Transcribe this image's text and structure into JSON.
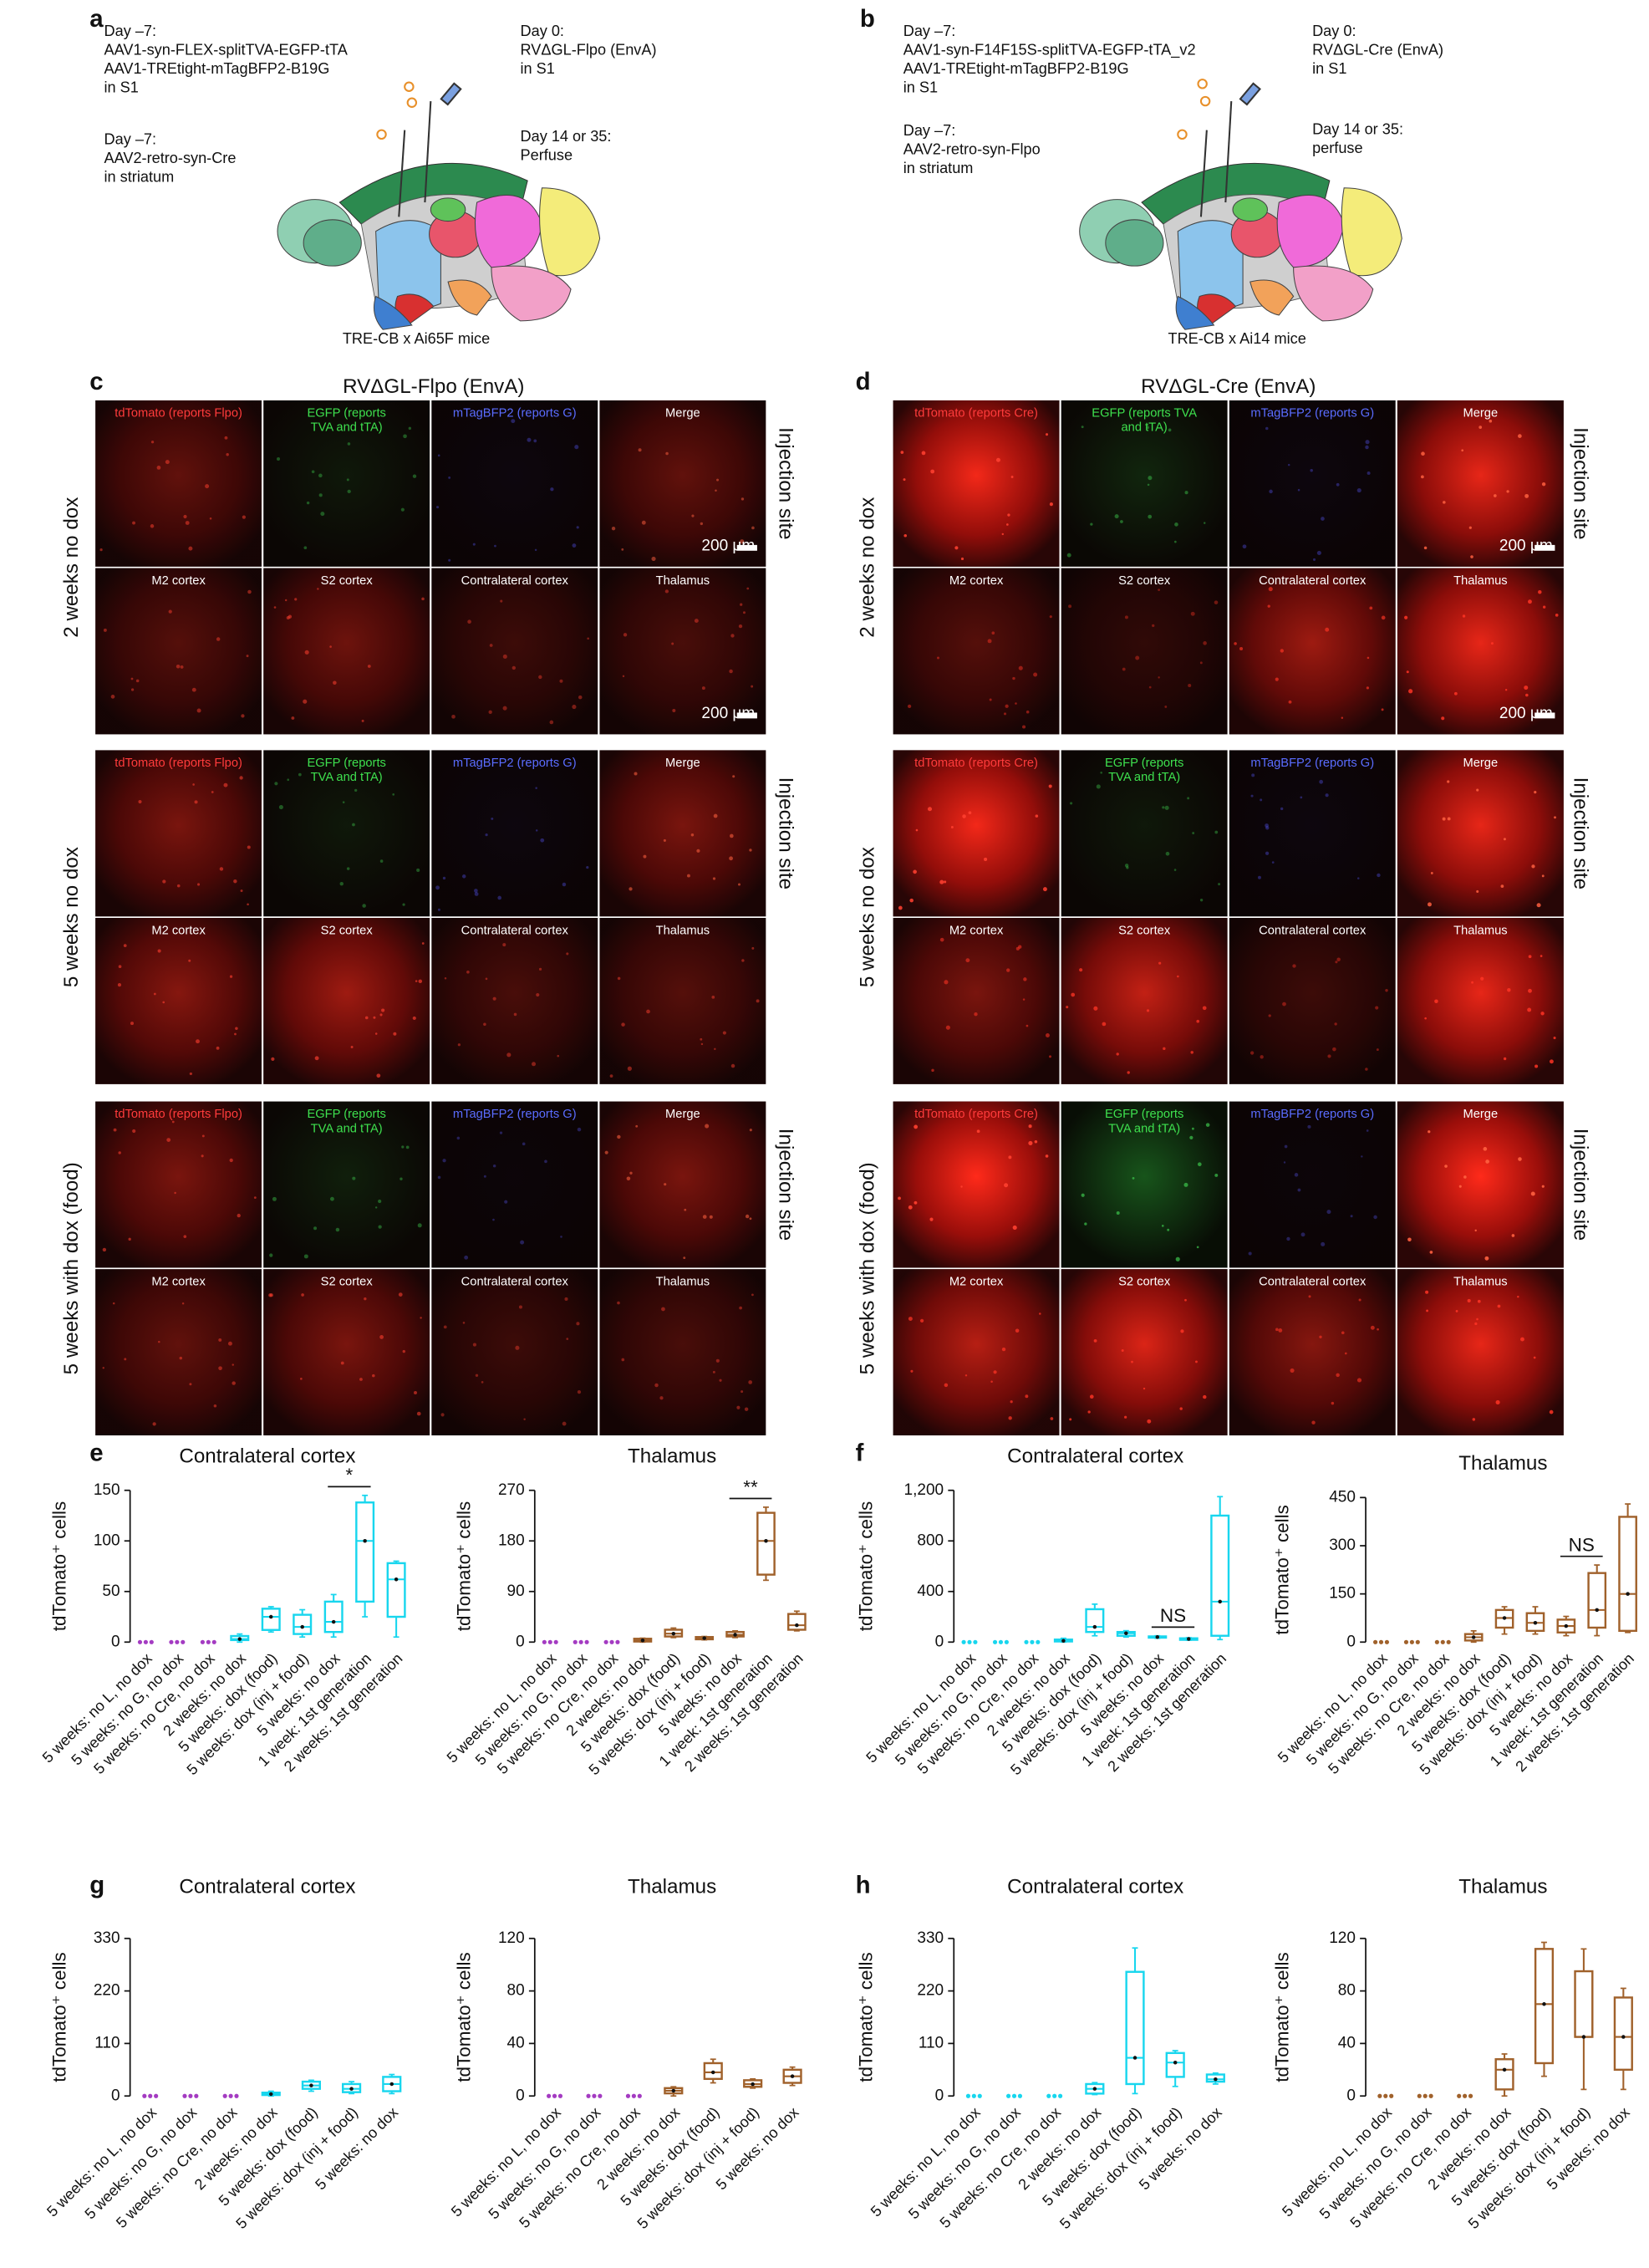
{
  "panel_a": {
    "label": "a",
    "blocks": [
      [
        "Day –7:",
        "AAV1-syn-FLEX-splitTVA-EGFP-tTA",
        "AAV1-TREtight-mTagBFP2-B19G",
        "in S1"
      ],
      [
        "Day –7:",
        "AAV2-retro-syn-Cre",
        "in striatum"
      ],
      [
        "Day 0:",
        "RVΔGL-Flpo (EnvA)",
        "in S1"
      ],
      [
        "Day 14 or 35:",
        "Perfuse"
      ]
    ],
    "caption": "TRE-CB x Ai65F mice"
  },
  "panel_b": {
    "label": "b",
    "blocks": [
      [
        "Day –7:",
        "AAV1-syn-F14F15S-splitTVA-EGFP-tTA_v2",
        "AAV1-TREtight-mTagBFP2-B19G",
        "in S1"
      ],
      [
        "Day –7:",
        "AAV2-retro-syn-Flpo",
        "in striatum"
      ],
      [
        "Day 0:",
        "RVΔGL-Cre (EnvA)",
        "in S1"
      ],
      [
        "Day 14 or 35:",
        "perfuse"
      ]
    ],
    "caption": "TRE-CB x Ai14 mice"
  },
  "panel_c": {
    "label": "c",
    "title": "RVΔGL-Flpo (EnvA)",
    "groups": [
      {
        "row_label": "2 weeks no dox",
        "side_label": "Injection site",
        "top": [
          "tdTomato (reports Flpo)",
          [
            "EGFP (reports",
            "TVA and tTA)"
          ],
          "mTagBFP2 (reports G)",
          "Merge"
        ],
        "bottom": [
          "M2 cortex",
          "S2 cortex",
          "Contralateral cortex",
          "Thalamus"
        ],
        "scale_bars": [
          "200 μm",
          "200 μm"
        ]
      },
      {
        "row_label": "5 weeks no dox",
        "side_label": "Injection site",
        "top": [
          "tdTomato (reports Flpo)",
          [
            "EGFP (reports",
            "TVA and tTA)"
          ],
          "mTagBFP2 (reports G)",
          "Merge"
        ],
        "bottom": [
          "M2 cortex",
          "S2 cortex",
          "Contralateral cortex",
          "Thalamus"
        ]
      },
      {
        "row_label": "5 weeks with dox (food)",
        "side_label": "Injection site",
        "top": [
          "tdTomato (reports Flpo)",
          [
            "EGFP (reports",
            "TVA and tTA)"
          ],
          "mTagBFP2 (reports G)",
          "Merge"
        ],
        "bottom": [
          "M2 cortex",
          "S2 cortex",
          "Contralateral cortex",
          "Thalamus"
        ]
      }
    ]
  },
  "panel_d": {
    "label": "d",
    "title": "RVΔGL-Cre (EnvA)",
    "groups": [
      {
        "row_label": "2 weeks no dox",
        "side_label": "Injection site",
        "top": [
          "tdTomato (reports Cre)",
          [
            "EGFP (reports TVA",
            "and tTA)"
          ],
          "mTagBFP2 (reports G)",
          "Merge"
        ],
        "bottom": [
          "M2 cortex",
          "S2 cortex",
          "Contralateral cortex",
          "Thalamus"
        ],
        "scale_bars": [
          "200 μm",
          "200 μm"
        ]
      },
      {
        "row_label": "5 weeks no dox",
        "side_label": "Injection site",
        "top": [
          "tdTomato (reports Cre)",
          [
            "EGFP (reports",
            "TVA and tTA)"
          ],
          "mTagBFP2 (reports G)",
          "Merge"
        ],
        "bottom": [
          "M2 cortex",
          "S2 cortex",
          "Contralateral cortex",
          "Thalamus"
        ]
      },
      {
        "row_label": "5 weeks with dox (food)",
        "side_label": "Injection site",
        "top": [
          "tdTomato (reports Cre)",
          [
            "EGFP (reports",
            "TVA and tTA)"
          ],
          "mTagBFP2 (reports G)",
          "Merge"
        ],
        "bottom": [
          "M2 cortex",
          "S2 cortex",
          "Contralateral cortex",
          "Thalamus"
        ]
      }
    ]
  },
  "chart_data": [
    {
      "type": "box",
      "panel_label": "e",
      "title": "Contralateral cortex",
      "y_label": "tdTomato⁺ cells",
      "categories": [
        "5 weeks: no L, no dox",
        "5 weeks: no G, no dox",
        "5 weeks: no Cre, no dox",
        "2 weeks: no dox",
        "5 weeks: dox (food)",
        "5 weeks: dox (inj + food)",
        "5 weeks: no dox",
        "1 week: 1st generation",
        "2 weeks: 1st generation"
      ],
      "colors": [
        "#a43bc2",
        "#a43bc2",
        "#a43bc2",
        "#18d6ee",
        "#18d6ee",
        "#18d6ee",
        "#18d6ee",
        "#18d6ee",
        "#18d6ee"
      ],
      "boxes": [
        {
          "low": 0,
          "q1": 0,
          "median": 0,
          "q3": 0,
          "high": 0
        },
        {
          "low": 0,
          "q1": 0,
          "median": 0,
          "q3": 0,
          "high": 0
        },
        {
          "low": 0,
          "q1": 0,
          "median": 0,
          "q3": 0,
          "high": 0
        },
        {
          "low": 0,
          "q1": 2,
          "median": 3,
          "q3": 6,
          "high": 8
        },
        {
          "low": 10,
          "q1": 12,
          "median": 25,
          "q3": 33,
          "high": 35
        },
        {
          "low": 5,
          "q1": 8,
          "median": 15,
          "q3": 27,
          "high": 32
        },
        {
          "low": 5,
          "q1": 10,
          "median": 20,
          "q3": 40,
          "high": 47
        },
        {
          "low": 25,
          "q1": 40,
          "median": 100,
          "q3": 138,
          "high": 145
        },
        {
          "low": 5,
          "q1": 25,
          "median": 62,
          "q3": 78,
          "high": 80
        }
      ],
      "ylim": [
        0,
        150
      ],
      "yticks": [
        0,
        50,
        100,
        150
      ],
      "annotations": [
        {
          "text": "*",
          "categories": [
            6,
            7
          ]
        }
      ]
    },
    {
      "type": "box",
      "title": "Thalamus",
      "y_label": "tdTomato⁺ cells",
      "categories": [
        "5 weeks: no L, no dox",
        "5 weeks: no G, no dox",
        "5 weeks: no Cre, no dox",
        "2 weeks: no dox",
        "5 weeks: dox (food)",
        "5 weeks: dox (inj + food)",
        "5 weeks: no dox",
        "1 week: 1st generation",
        "2 weeks: 1st generation"
      ],
      "colors": [
        "#a43bc2",
        "#a43bc2",
        "#a43bc2",
        "#a0612b",
        "#a0612b",
        "#a0612b",
        "#a0612b",
        "#a0612b",
        "#a0612b"
      ],
      "boxes": [
        {
          "low": 0,
          "q1": 0,
          "median": 0,
          "q3": 0,
          "high": 0
        },
        {
          "low": 0,
          "q1": 0,
          "median": 0,
          "q3": 0,
          "high": 0
        },
        {
          "low": 0,
          "q1": 0,
          "median": 0,
          "q3": 0,
          "high": 0
        },
        {
          "low": 0,
          "q1": 1,
          "median": 3,
          "q3": 6,
          "high": 7
        },
        {
          "low": 8,
          "q1": 10,
          "median": 15,
          "q3": 22,
          "high": 25
        },
        {
          "low": 4,
          "q1": 5,
          "median": 7,
          "q3": 9,
          "high": 10
        },
        {
          "low": 8,
          "q1": 10,
          "median": 13,
          "q3": 18,
          "high": 20
        },
        {
          "low": 110,
          "q1": 120,
          "median": 180,
          "q3": 230,
          "high": 240
        },
        {
          "low": 20,
          "q1": 22,
          "median": 30,
          "q3": 50,
          "high": 55
        }
      ],
      "ylim": [
        0,
        270
      ],
      "yticks": [
        0,
        90,
        180,
        270
      ],
      "annotations": [
        {
          "text": "**",
          "categories": [
            6,
            7
          ]
        }
      ]
    },
    {
      "type": "box",
      "panel_label": "f",
      "title": "Contralateral cortex",
      "y_label": "tdTomato⁺ cells",
      "categories": [
        "5 weeks: no L, no dox",
        "5 weeks: no G, no dox",
        "5 weeks: no Cre, no dox",
        "2 weeks: no dox",
        "5 weeks: dox (food)",
        "5 weeks: dox (inj + food)",
        "5 weeks: no dox",
        "1 week: 1st generation",
        "2 weeks: 1st generation"
      ],
      "colors": [
        "#18d6ee",
        "#18d6ee",
        "#18d6ee",
        "#18d6ee",
        "#18d6ee",
        "#18d6ee",
        "#18d6ee",
        "#18d6ee",
        "#18d6ee"
      ],
      "boxes": [
        {
          "low": 0,
          "q1": 0,
          "median": 0,
          "q3": 0,
          "high": 0
        },
        {
          "low": 0,
          "q1": 0,
          "median": 0,
          "q3": 0,
          "high": 0
        },
        {
          "low": 0,
          "q1": 0,
          "median": 0,
          "q3": 0,
          "high": 0
        },
        {
          "low": 0,
          "q1": 5,
          "median": 10,
          "q3": 20,
          "high": 30
        },
        {
          "low": 50,
          "q1": 80,
          "median": 120,
          "q3": 260,
          "high": 300
        },
        {
          "low": 40,
          "q1": 50,
          "median": 70,
          "q3": 80,
          "high": 90
        },
        {
          "low": 30,
          "q1": 35,
          "median": 40,
          "q3": 45,
          "high": 50
        },
        {
          "low": 15,
          "q1": 18,
          "median": 25,
          "q3": 30,
          "high": 35
        },
        {
          "low": 20,
          "q1": 50,
          "median": 320,
          "q3": 1000,
          "high": 1150
        }
      ],
      "ylim": [
        0,
        1200
      ],
      "yticks": [
        0,
        400,
        800,
        {
          "value": 1200,
          "label": "1,200"
        }
      ],
      "annotations": [
        {
          "text": "NS",
          "categories": [
            6,
            7
          ]
        }
      ]
    },
    {
      "type": "box",
      "title": "Thalamus",
      "y_label": "tdTomato⁺ cells",
      "categories": [
        "5 weeks: no L, no dox",
        "5 weeks: no G, no dox",
        "5 weeks: no Cre, no dox",
        "2 weeks: no dox",
        "5 weeks: dox (food)",
        "5 weeks: dox (inj + food)",
        "5 weeks: no dox",
        "1 week: 1st generation",
        "2 weeks: 1st generation"
      ],
      "colors": [
        "#a0612b",
        "#a0612b",
        "#a0612b",
        "#a0612b",
        "#a0612b",
        "#a0612b",
        "#a0612b",
        "#a0612b",
        "#a0612b"
      ],
      "boxes": [
        {
          "low": 0,
          "q1": 0,
          "median": 0,
          "q3": 0,
          "high": 0
        },
        {
          "low": 0,
          "q1": 0,
          "median": 0,
          "q3": 0,
          "high": 0
        },
        {
          "low": 0,
          "q1": 0,
          "median": 0,
          "q3": 0,
          "high": 0
        },
        {
          "low": 0,
          "q1": 5,
          "median": 15,
          "q3": 25,
          "high": 35
        },
        {
          "low": 25,
          "q1": 45,
          "median": 75,
          "q3": 100,
          "high": 110
        },
        {
          "low": 25,
          "q1": 35,
          "median": 60,
          "q3": 90,
          "high": 110
        },
        {
          "low": 20,
          "q1": 30,
          "median": 50,
          "q3": 70,
          "high": 80
        },
        {
          "low": 20,
          "q1": 45,
          "median": 100,
          "q3": 215,
          "high": 240
        },
        {
          "low": 30,
          "q1": 35,
          "median": 150,
          "q3": 390,
          "high": 430
        }
      ],
      "ylim": [
        0,
        450
      ],
      "yticks": [
        0,
        150,
        300,
        450
      ],
      "annotations": [
        {
          "text": "NS",
          "categories": [
            6,
            7
          ]
        }
      ]
    },
    {
      "type": "box",
      "panel_label": "g",
      "title": "Contralateral cortex",
      "y_label": "tdTomato⁺ cells",
      "categories": [
        "5 weeks: no L, no dox",
        "5 weeks: no G, no dox",
        "5 weeks: no Cre, no dox",
        "2 weeks: no dox",
        "5 weeks: dox (food)",
        "5 weeks: dox (inj + food)",
        "5 weeks: no dox"
      ],
      "colors": [
        "#a43bc2",
        "#a43bc2",
        "#a43bc2",
        "#18d6ee",
        "#18d6ee",
        "#18d6ee",
        "#18d6ee"
      ],
      "boxes": [
        {
          "low": 0,
          "q1": 0,
          "median": 0,
          "q3": 0,
          "high": 0
        },
        {
          "low": 0,
          "q1": 0,
          "median": 0,
          "q3": 0,
          "high": 0
        },
        {
          "low": 0,
          "q1": 0,
          "median": 0,
          "q3": 0,
          "high": 0
        },
        {
          "low": 0,
          "q1": 2,
          "median": 4,
          "q3": 7,
          "high": 10
        },
        {
          "low": 10,
          "q1": 15,
          "median": 22,
          "q3": 30,
          "high": 33
        },
        {
          "low": 5,
          "q1": 8,
          "median": 15,
          "q3": 25,
          "high": 30
        },
        {
          "low": 5,
          "q1": 10,
          "median": 25,
          "q3": 40,
          "high": 45
        }
      ],
      "ylim": [
        0,
        330
      ],
      "yticks": [
        0,
        110,
        220,
        330
      ]
    },
    {
      "type": "box",
      "title": "Thalamus",
      "y_label": "tdTomato⁺ cells",
      "categories": [
        "5 weeks: no L, no dox",
        "5 weeks: no G, no dox",
        "5 weeks: no Cre, no dox",
        "2 weeks: no dox",
        "5 weeks: dox (food)",
        "5 weeks: dox (inj + food)",
        "5 weeks: no dox"
      ],
      "colors": [
        "#a43bc2",
        "#a43bc2",
        "#a43bc2",
        "#a0612b",
        "#a0612b",
        "#a0612b",
        "#a0612b"
      ],
      "boxes": [
        {
          "low": 0,
          "q1": 0,
          "median": 0,
          "q3": 0,
          "high": 0
        },
        {
          "low": 0,
          "q1": 0,
          "median": 0,
          "q3": 0,
          "high": 0
        },
        {
          "low": 0,
          "q1": 0,
          "median": 0,
          "q3": 0,
          "high": 0
        },
        {
          "low": 0,
          "q1": 2,
          "median": 4,
          "q3": 6,
          "high": 7
        },
        {
          "low": 10,
          "q1": 13,
          "median": 18,
          "q3": 25,
          "high": 28
        },
        {
          "low": 6,
          "q1": 7,
          "median": 9,
          "q3": 12,
          "high": 13
        },
        {
          "low": 8,
          "q1": 10,
          "median": 15,
          "q3": 20,
          "high": 22
        }
      ],
      "ylim": [
        0,
        120
      ],
      "yticks": [
        0,
        40,
        80,
        120
      ]
    },
    {
      "type": "box",
      "panel_label": "h",
      "title": "Contralateral cortex",
      "y_label": "tdTomato⁺ cells",
      "categories": [
        "5 weeks: no L, no dox",
        "5 weeks: no G, no dox",
        "5 weeks: no Cre, no dox",
        "2 weeks: no dox",
        "5 weeks: dox (food)",
        "5 weeks: dox (inj + food)",
        "5 weeks: no dox"
      ],
      "colors": [
        "#18d6ee",
        "#18d6ee",
        "#18d6ee",
        "#18d6ee",
        "#18d6ee",
        "#18d6ee",
        "#18d6ee"
      ],
      "boxes": [
        {
          "low": 0,
          "q1": 0,
          "median": 0,
          "q3": 0,
          "high": 0
        },
        {
          "low": 0,
          "q1": 0,
          "median": 0,
          "q3": 0,
          "high": 0
        },
        {
          "low": 0,
          "q1": 0,
          "median": 0,
          "q3": 0,
          "high": 0
        },
        {
          "low": 3,
          "q1": 5,
          "median": 15,
          "q3": 25,
          "high": 28
        },
        {
          "low": 5,
          "q1": 25,
          "median": 80,
          "q3": 260,
          "high": 310
        },
        {
          "low": 20,
          "q1": 40,
          "median": 70,
          "q3": 90,
          "high": 95
        },
        {
          "low": 25,
          "q1": 30,
          "median": 35,
          "q3": 45,
          "high": 48
        }
      ],
      "ylim": [
        0,
        330
      ],
      "yticks": [
        0,
        110,
        220,
        330
      ]
    },
    {
      "type": "box",
      "title": "Thalamus",
      "y_label": "tdTomato⁺ cells",
      "categories": [
        "5 weeks: no L, no dox",
        "5 weeks: no G, no dox",
        "5 weeks: no Cre, no dox",
        "2 weeks: no dox",
        "5 weeks: dox (food)",
        "5 weeks: dox (inj + food)",
        "5 weeks: no dox"
      ],
      "colors": [
        "#a0612b",
        "#a0612b",
        "#a0612b",
        "#a0612b",
        "#a0612b",
        "#a0612b",
        "#a0612b"
      ],
      "boxes": [
        {
          "low": 0,
          "q1": 0,
          "median": 0,
          "q3": 0,
          "high": 0
        },
        {
          "low": 0,
          "q1": 0,
          "median": 0,
          "q3": 0,
          "high": 0
        },
        {
          "low": 0,
          "q1": 0,
          "median": 0,
          "q3": 0,
          "high": 0
        },
        {
          "low": 0,
          "q1": 5,
          "median": 20,
          "q3": 28,
          "high": 32
        },
        {
          "low": 15,
          "q1": 25,
          "median": 70,
          "q3": 112,
          "high": 117
        },
        {
          "low": 5,
          "q1": 45,
          "median": 45,
          "q3": 95,
          "high": 112
        },
        {
          "low": 5,
          "q1": 20,
          "median": 45,
          "q3": 75,
          "high": 82
        }
      ],
      "ylim": [
        0,
        120
      ],
      "yticks": [
        0,
        40,
        80,
        120
      ]
    }
  ]
}
